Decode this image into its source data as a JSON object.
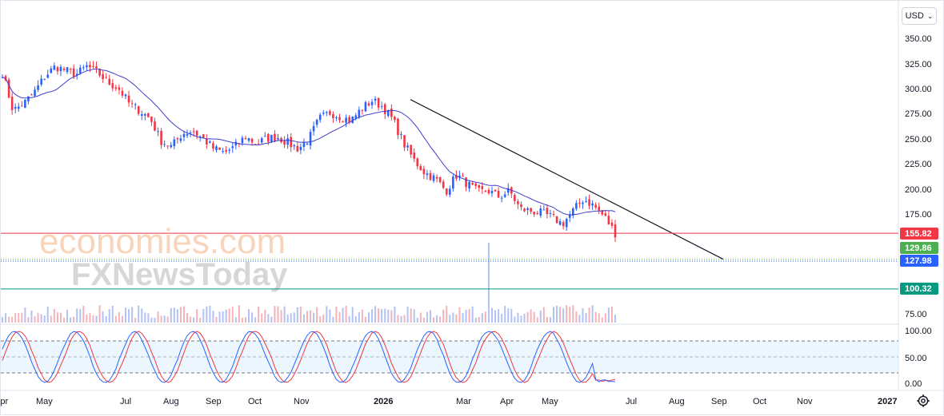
{
  "currency_selector": {
    "label": "USD"
  },
  "watermark": {
    "line1": "economies.com",
    "line2": "FXNewsToday"
  },
  "chart_data": {
    "type": "candlestick",
    "title": "",
    "price_axis": {
      "ticks": [
        "350.00",
        "325.00",
        "300.00",
        "275.00",
        "250.00",
        "225.00",
        "200.00",
        "175.00",
        "75.00"
      ],
      "ylim": [
        70,
        360
      ]
    },
    "oscillator_axis": {
      "ticks": [
        "100.00",
        "50.00",
        "0.00"
      ],
      "ylim": [
        0,
        100
      ],
      "band_levels": [
        80,
        50,
        20
      ]
    },
    "time_axis": {
      "labels": [
        "Apr",
        "May",
        "Jul",
        "Aug",
        "Sep",
        "Oct",
        "Nov",
        "2026",
        "Mar",
        "Apr",
        "May",
        "Jul",
        "Aug",
        "Sep",
        "Oct",
        "Nov",
        "2027"
      ],
      "bold_labels": [
        "2026"
      ]
    },
    "price_path": [
      [
        "Apr",
        316
      ],
      [
        "Apr",
        278
      ],
      [
        "Apr",
        285
      ],
      [
        "May",
        296
      ],
      [
        "May",
        312
      ],
      [
        "May",
        322
      ],
      [
        "May",
        318
      ],
      [
        "Jun",
        314
      ],
      [
        "Jun",
        322
      ],
      [
        "Jun",
        316
      ],
      [
        "Jun",
        306
      ],
      [
        "Jul",
        300
      ],
      [
        "Jul",
        285
      ],
      [
        "Jul",
        278
      ],
      [
        "Jul",
        270
      ],
      [
        "Aug",
        248
      ],
      [
        "Aug",
        242
      ],
      [
        "Aug",
        255
      ],
      [
        "Sep",
        258
      ],
      [
        "Sep",
        250
      ],
      [
        "Sep",
        240
      ],
      [
        "Sep",
        236
      ],
      [
        "Oct",
        242
      ],
      [
        "Oct",
        252
      ],
      [
        "Oct",
        245
      ],
      [
        "Oct",
        250
      ],
      [
        "Nov",
        252
      ],
      [
        "Nov",
        246
      ],
      [
        "Nov",
        240
      ],
      [
        "Nov",
        250
      ],
      [
        "Dec",
        270
      ],
      [
        "Dec",
        276
      ],
      [
        "Dec",
        272
      ],
      [
        "Dec",
        268
      ],
      [
        "Jan",
        280
      ],
      [
        "Jan",
        288
      ],
      [
        "Jan",
        282
      ],
      [
        "Jan",
        268
      ],
      [
        "Feb",
        245
      ],
      [
        "Feb",
        228
      ],
      [
        "Feb",
        216
      ],
      [
        "Feb",
        210
      ],
      [
        "Mar",
        198
      ],
      [
        "Mar",
        214
      ],
      [
        "Mar",
        205
      ],
      [
        "Mar",
        197
      ],
      [
        "Apr",
        198
      ],
      [
        "Apr",
        192
      ],
      [
        "Apr",
        198
      ],
      [
        "Apr",
        180
      ],
      [
        "May",
        178
      ],
      [
        "May",
        176
      ],
      [
        "May",
        172
      ],
      [
        "May",
        165
      ],
      [
        "Jun",
        178
      ],
      [
        "Jun",
        190
      ],
      [
        "Jun",
        183
      ],
      [
        "Jun",
        172
      ],
      [
        "Jun",
        156
      ]
    ],
    "moving_average": {
      "color": "#3f3fcf"
    },
    "trendline": {
      "from": [
        "Jan 2026",
        289
      ],
      "to": [
        "Sep 2026",
        130
      ],
      "color": "#131722"
    },
    "levels": [
      {
        "value": "155.82",
        "color": "#f23645",
        "style": "solid"
      },
      {
        "value": "129.86",
        "color": "#4caf50",
        "style": "dotted"
      },
      {
        "value": "127.98",
        "color": "#2962ff",
        "style": "dotted"
      },
      {
        "value": "100.32",
        "color": "#089981",
        "style": "solid"
      }
    ],
    "colors": {
      "up": "#2962ff",
      "down": "#f23645",
      "volume": "#f0a0a8",
      "stoch_k": "#2962ff",
      "stoch_d": "#f23645",
      "band_fill": "#e3f2fd"
    }
  }
}
